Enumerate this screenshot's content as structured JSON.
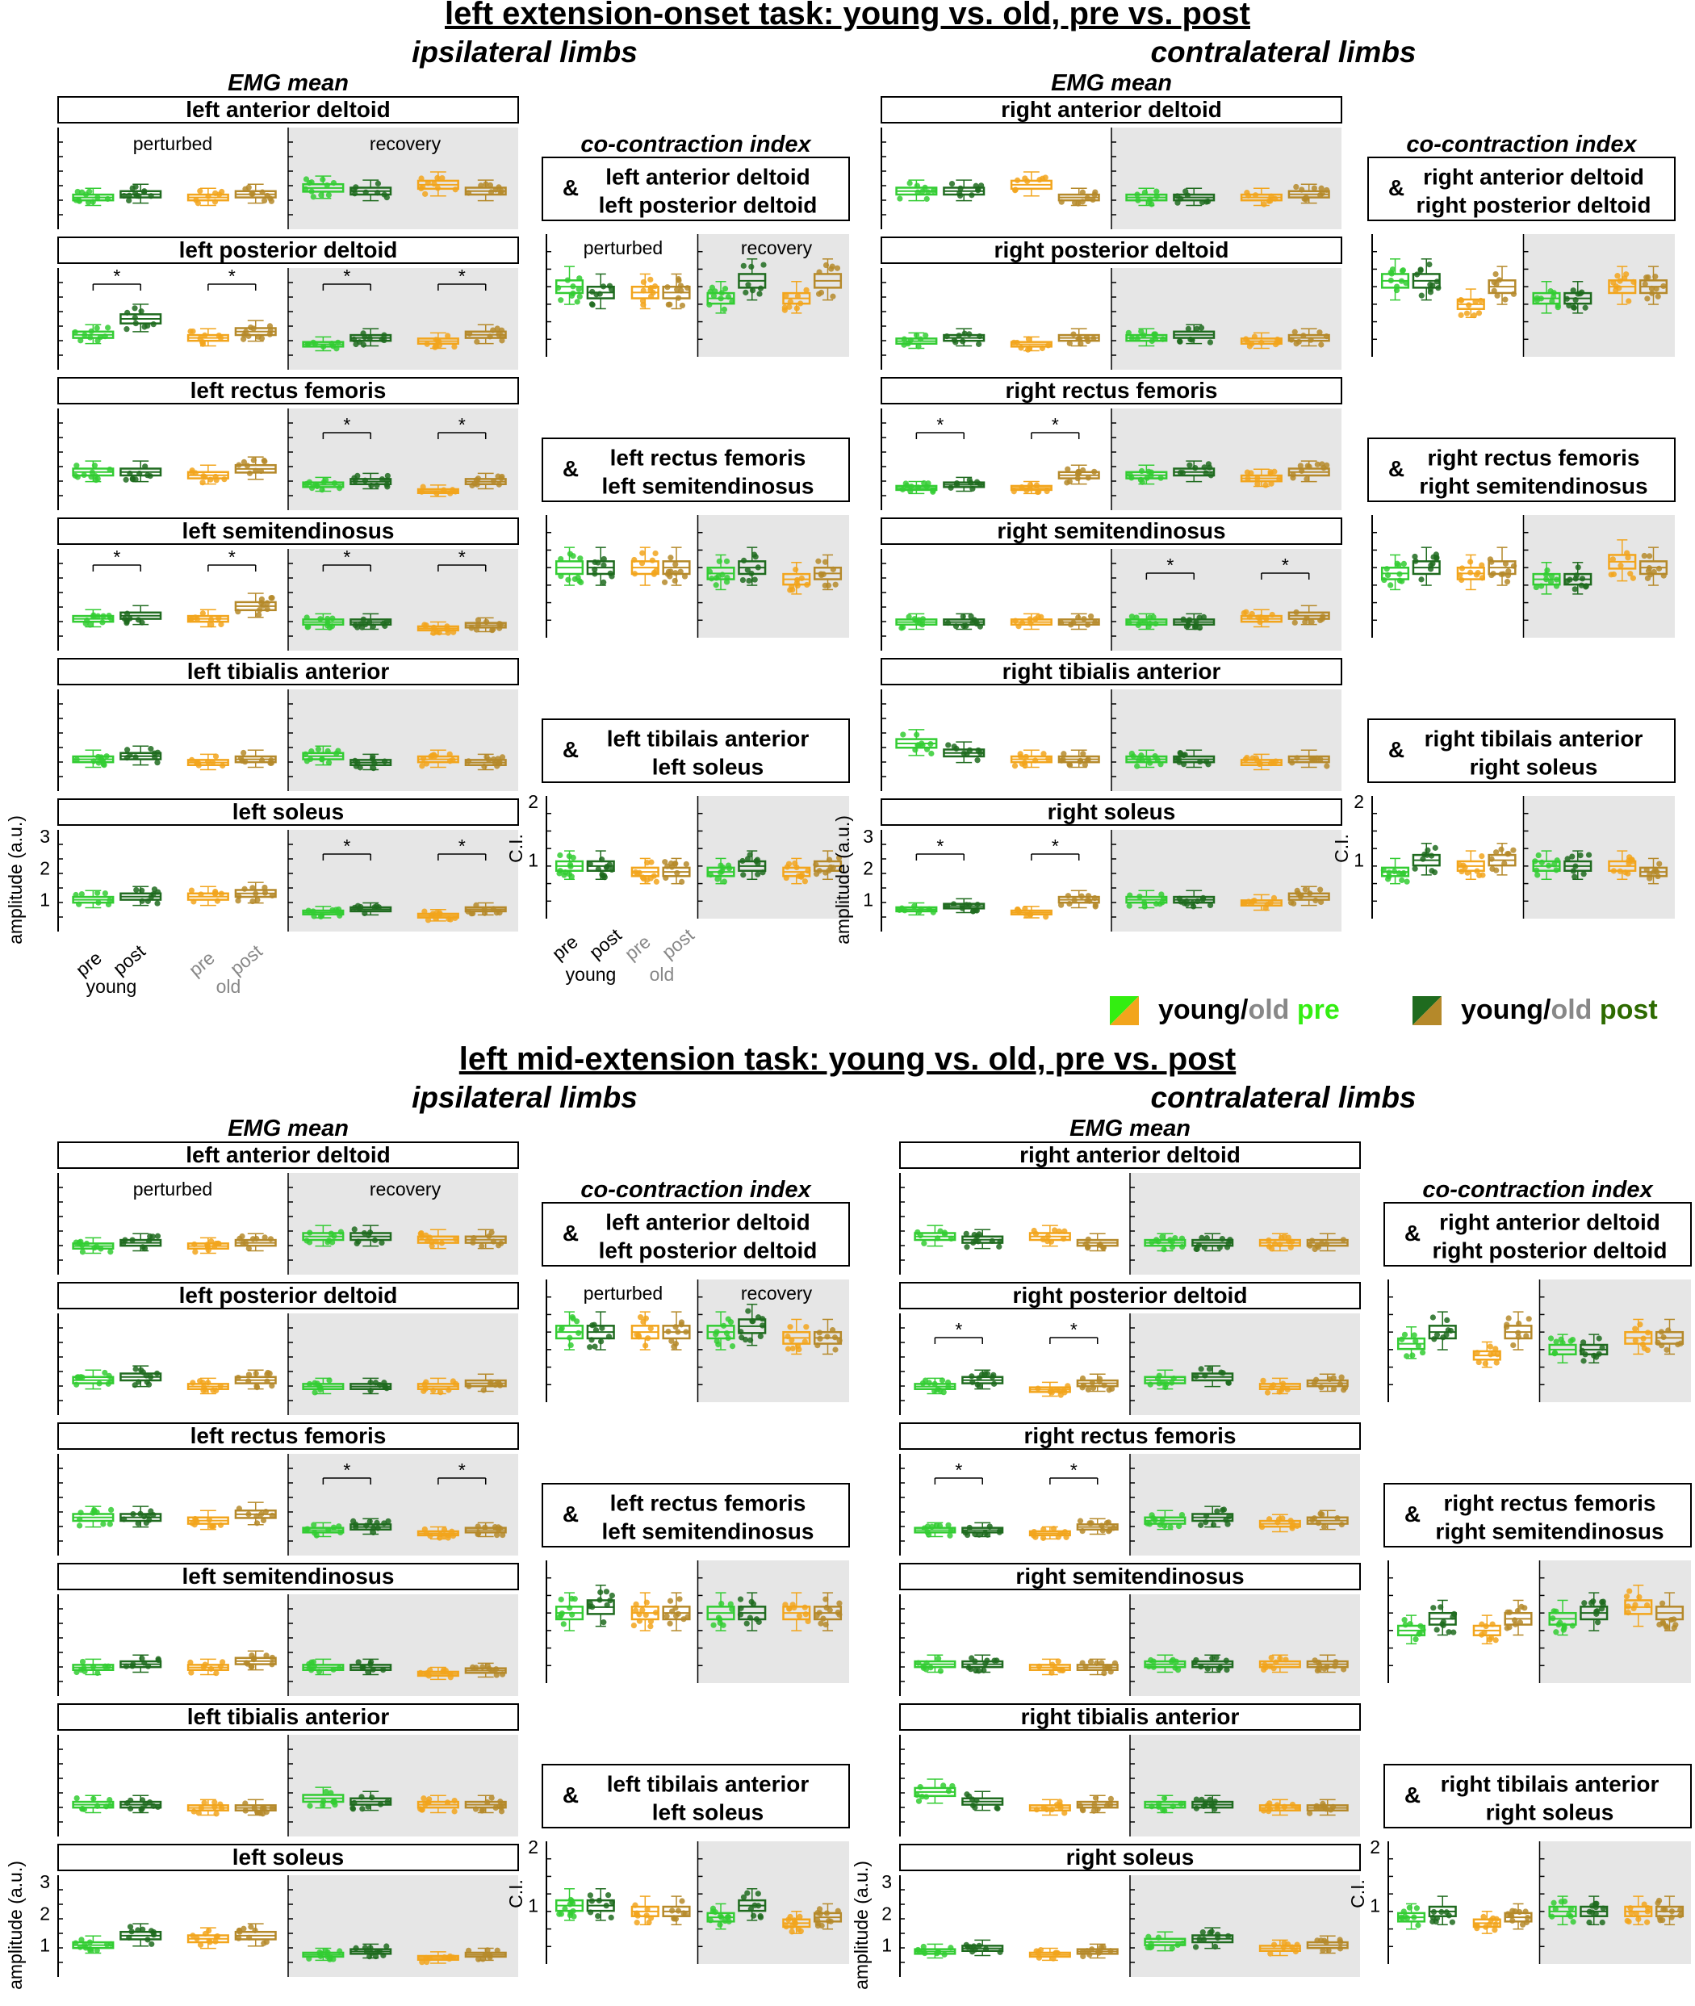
{
  "colors": {
    "young_pre": "#33cc33",
    "young_post": "#1f6b1f",
    "old_pre": "#f2a51c",
    "old_post": "#b5892a",
    "recovery_bg": "#e6e6e6",
    "title": "#000000",
    "legend_grey": "#888888",
    "legend_pre": "#33ee11",
    "legend_post": "#2d6a00"
  },
  "tasks": [
    {
      "title": "left extension-onset task: young vs. old, pre vs. post",
      "ipsi_header": "ipsilateral limbs",
      "contra_header": "contralateral limbs",
      "emg_header": "EMG mean",
      "cci_header": "co-contraction index",
      "ipsi_muscles": [
        "left anterior deltoid",
        "left posterior deltoid",
        "left rectus femoris",
        "left semitendinosus",
        "left tibialis anterior",
        "left soleus"
      ],
      "contra_muscles": [
        "right anterior deltoid",
        "right posterior deltoid",
        "right rectus femoris",
        "right semitendinosus",
        "right tibialis anterior",
        "right soleus"
      ],
      "ipsi_pairs": [
        [
          "left anterior deltoid",
          "left posterior deltoid"
        ],
        [
          "left rectus femoris",
          "left semitendinosus"
        ],
        [
          "left tibilais anterior",
          "left soleus"
        ]
      ],
      "contra_pairs": [
        [
          "right anterior deltoid",
          "right posterior deltoid"
        ],
        [
          "right rectus femoris",
          "right semitendinosus"
        ],
        [
          "right tibilais anterior",
          "right soleus"
        ]
      ]
    },
    {
      "title": "left mid-extension task: young vs. old, pre vs. post",
      "ipsi_header": "ipsilateral limbs",
      "contra_header": "contralateral limbs",
      "emg_header": "EMG mean",
      "cci_header": "co-contraction index",
      "ipsi_muscles": [
        "left anterior deltoid",
        "left posterior deltoid",
        "left rectus femoris",
        "left semitendinosus",
        "left tibialis anterior",
        "left soleus"
      ],
      "contra_muscles": [
        "right anterior deltoid",
        "right posterior deltoid",
        "right rectus femoris",
        "right semitendinosus",
        "right tibialis anterior",
        "right soleus"
      ],
      "ipsi_pairs": [
        [
          "left anterior deltoid",
          "left posterior deltoid"
        ],
        [
          "left rectus femoris",
          "left semitendinosus"
        ],
        [
          "left tibilais anterior",
          "left soleus"
        ]
      ],
      "contra_pairs": [
        [
          "right anterior deltoid",
          "right posterior deltoid"
        ],
        [
          "right rectus femoris",
          "right semitendinosus"
        ],
        [
          "right tibilais anterior",
          "right soleus"
        ]
      ]
    }
  ],
  "labels": {
    "ampersand": "&",
    "perturbed": "perturbed",
    "recovery": "recovery",
    "ylabel_emg": "amplitude (a.u.)",
    "ylabel_cci": "C.I.",
    "pre": "pre",
    "post": "post",
    "young": "young",
    "old": "old",
    "sig": "*"
  },
  "legend": {
    "pre": {
      "young": "young",
      "slash": "/",
      "old": "old",
      "suffix": " pre"
    },
    "post": {
      "young": "young",
      "slash": "/",
      "old": "old",
      "suffix": " post"
    }
  },
  "chart_data": {
    "type": "box",
    "groups": [
      "young pre",
      "young post",
      "old pre",
      "old post"
    ],
    "phases": [
      "perturbed",
      "recovery"
    ],
    "emg_yticks": [
      1,
      2,
      3
    ],
    "cci_yticks": [
      1,
      2
    ],
    "emg_medians": {
      "task1_ipsi": [
        [
          1.0,
          1.1,
          1.0,
          1.1,
          1.3,
          1.2,
          1.4,
          1.2
        ],
        [
          1.1,
          1.6,
          1.0,
          1.2,
          0.8,
          1.0,
          0.9,
          1.1
        ],
        [
          1.2,
          1.2,
          1.1,
          1.3,
          0.8,
          0.9,
          0.6,
          0.9
        ],
        [
          1.0,
          1.1,
          1.0,
          1.4,
          0.9,
          0.9,
          0.7,
          0.8
        ],
        [
          1.0,
          1.1,
          0.9,
          1.0,
          1.1,
          0.9,
          1.0,
          0.9
        ],
        [
          1.0,
          1.1,
          1.1,
          1.2,
          0.6,
          0.7,
          0.5,
          0.7
        ]
      ],
      "task1_contra": [
        [
          1.2,
          1.2,
          1.4,
          1.0,
          1.0,
          1.0,
          1.0,
          1.1
        ],
        [
          0.9,
          1.0,
          0.8,
          1.0,
          1.0,
          1.1,
          0.9,
          1.0
        ],
        [
          0.7,
          0.8,
          0.7,
          1.1,
          1.1,
          1.2,
          1.0,
          1.2
        ],
        [
          0.9,
          0.9,
          0.9,
          0.9,
          0.9,
          0.9,
          1.0,
          1.1
        ],
        [
          1.5,
          1.2,
          1.0,
          1.0,
          1.0,
          1.0,
          0.9,
          1.0
        ],
        [
          0.7,
          0.8,
          0.6,
          1.0,
          1.0,
          1.0,
          0.9,
          1.1
        ]
      ],
      "task2_ipsi": [
        [
          0.9,
          1.0,
          0.9,
          1.0,
          1.2,
          1.2,
          1.1,
          1.1
        ],
        [
          1.1,
          1.2,
          0.9,
          1.1,
          0.9,
          0.9,
          0.9,
          1.0
        ],
        [
          1.2,
          1.2,
          1.1,
          1.3,
          0.8,
          0.9,
          0.7,
          0.8
        ],
        [
          0.9,
          1.0,
          0.9,
          1.1,
          0.9,
          0.9,
          0.7,
          0.8
        ],
        [
          1.0,
          1.0,
          0.9,
          0.9,
          1.2,
          1.1,
          1.0,
          1.0
        ],
        [
          1.0,
          1.3,
          1.2,
          1.3,
          0.7,
          0.8,
          0.6,
          0.7
        ]
      ],
      "task2_contra": [
        [
          1.2,
          1.1,
          1.2,
          1.0,
          1.0,
          1.0,
          1.0,
          1.0
        ],
        [
          0.9,
          1.1,
          0.8,
          1.0,
          1.1,
          1.2,
          0.9,
          1.0
        ],
        [
          0.8,
          0.8,
          0.7,
          0.9,
          1.1,
          1.2,
          1.0,
          1.1
        ],
        [
          1.0,
          1.0,
          0.9,
          0.9,
          1.0,
          1.0,
          1.0,
          1.0
        ],
        [
          1.4,
          1.1,
          0.9,
          1.0,
          1.0,
          1.0,
          0.9,
          0.9
        ],
        [
          0.8,
          0.9,
          0.7,
          0.8,
          1.1,
          1.2,
          0.9,
          1.0
        ]
      ]
    },
    "cci_medians": {
      "task1_ipsi": [
        [
          1.2,
          1.1,
          1.1,
          1.1,
          1.0,
          1.3,
          1.0,
          1.3
        ],
        [
          1.2,
          1.2,
          1.2,
          1.2,
          1.1,
          1.2,
          1.0,
          1.1
        ],
        [
          0.9,
          0.9,
          0.8,
          0.8,
          0.8,
          0.9,
          0.8,
          0.9
        ]
      ],
      "task1_contra": [
        [
          1.3,
          1.3,
          0.9,
          1.2,
          1.0,
          1.0,
          1.2,
          1.2
        ],
        [
          1.1,
          1.2,
          1.1,
          1.2,
          1.0,
          1.0,
          1.3,
          1.2
        ],
        [
          0.8,
          1.0,
          0.9,
          1.0,
          0.9,
          0.9,
          0.9,
          0.8
        ]
      ],
      "task2_ipsi": [
        [
          1.2,
          1.2,
          1.2,
          1.2,
          1.2,
          1.3,
          1.1,
          1.1
        ],
        [
          1.2,
          1.3,
          1.2,
          1.2,
          1.2,
          1.2,
          1.2,
          1.2
        ],
        [
          1.0,
          1.0,
          0.9,
          0.9,
          0.8,
          1.0,
          0.7,
          0.8
        ]
      ],
      "task2_contra": [
        [
          1.0,
          1.2,
          0.8,
          1.2,
          0.9,
          0.9,
          1.1,
          1.1
        ],
        [
          0.9,
          1.1,
          0.9,
          1.1,
          1.1,
          1.2,
          1.3,
          1.2
        ],
        [
          0.8,
          0.9,
          0.7,
          0.8,
          0.9,
          0.9,
          0.9,
          0.9
        ]
      ]
    }
  }
}
